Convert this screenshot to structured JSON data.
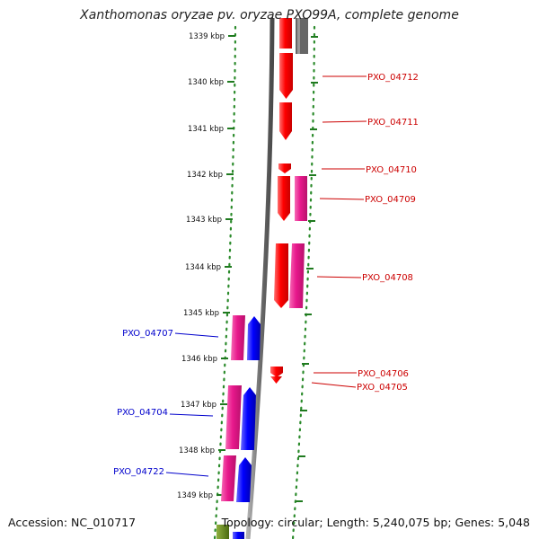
{
  "header": {
    "title": "Xanthomonas oryzae pv. oryzae PXO99A, complete genome"
  },
  "footer": {
    "accession": "Accession: NC_010717",
    "summary": "Topology: circular; Length: 5,240,075 bp; Genes: 5,048"
  },
  "colors": {
    "red_gene": "#ff0000",
    "pink_gene": "#e8188c",
    "blue_gene": "#0000ff",
    "grey_backbone": "#808080",
    "dot_green": "#2a8a2a",
    "red_label": "#cc0000",
    "blue_label": "#0000cc"
  },
  "ticks": [
    {
      "label": "1339 kbp"
    },
    {
      "label": "1340 kbp"
    },
    {
      "label": "1341 kbp"
    },
    {
      "label": "1342 kbp"
    },
    {
      "label": "1343 kbp"
    },
    {
      "label": "1344 kbp"
    },
    {
      "label": "1345 kbp"
    },
    {
      "label": "1346 kbp"
    },
    {
      "label": "1347 kbp"
    },
    {
      "label": "1348 kbp"
    },
    {
      "label": "1349 kbp"
    }
  ],
  "genes": [
    {
      "name": "PXO_04712",
      "strand": "reverse",
      "color": "red"
    },
    {
      "name": "PXO_04711",
      "strand": "reverse",
      "color": "red"
    },
    {
      "name": "PXO_04710",
      "strand": "reverse",
      "color": "red"
    },
    {
      "name": "PXO_04709",
      "strand": "reverse",
      "color": "red"
    },
    {
      "name": "PXO_04708",
      "strand": "reverse",
      "color": "red"
    },
    {
      "name": "PXO_04706",
      "strand": "reverse",
      "color": "red"
    },
    {
      "name": "PXO_04705",
      "strand": "reverse",
      "color": "red"
    },
    {
      "name": "PXO_04707",
      "strand": "forward",
      "color": "blue"
    },
    {
      "name": "PXO_04704",
      "strand": "forward",
      "color": "blue"
    },
    {
      "name": "PXO_04722",
      "strand": "forward",
      "color": "blue"
    }
  ]
}
